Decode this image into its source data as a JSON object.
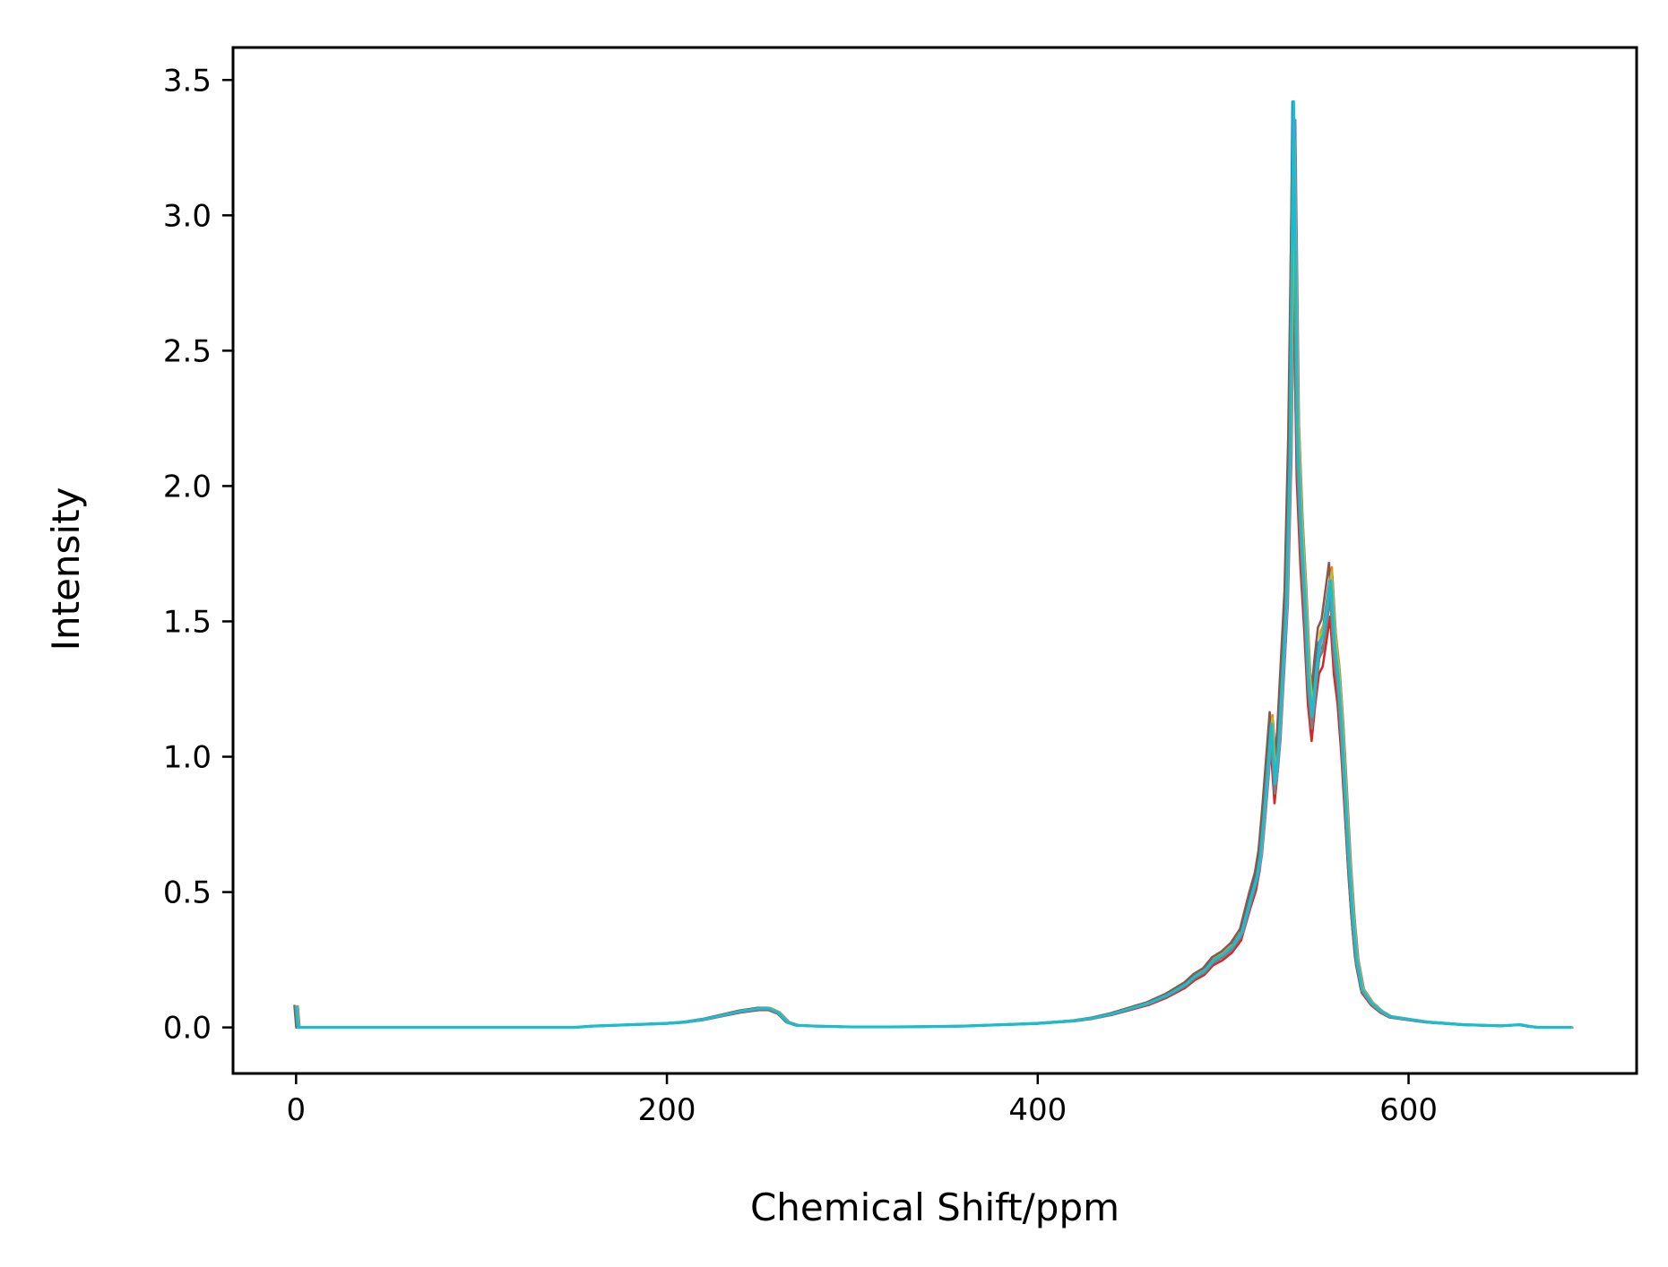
{
  "chart_data": {
    "type": "line",
    "title": "",
    "xlabel": "Chemical Shift/ppm",
    "ylabel": "Intensity",
    "xlim": [
      -34,
      723
    ],
    "ylim": [
      -0.17,
      3.62
    ],
    "grid": false,
    "legend": "none",
    "xticks": [
      0,
      200,
      400,
      600
    ],
    "xtick_labels": [
      "0",
      "200",
      "400",
      "600"
    ],
    "yticks": [
      0.0,
      0.5,
      1.0,
      1.5,
      2.0,
      2.5,
      3.0,
      3.5
    ],
    "ytick_labels": [
      "0.0",
      "0.5",
      "1.0",
      "1.5",
      "2.0",
      "2.5",
      "3.0",
      "3.5"
    ],
    "colors": [
      "#1f77b4",
      "#ff7f0e",
      "#2ca02c",
      "#d62728",
      "#9467bd",
      "#8c564b",
      "#e377c2",
      "#7f7f7f",
      "#bcbd22",
      "#17becf"
    ],
    "base_spectrum": {
      "x": [
        0,
        1,
        2,
        3,
        100,
        110,
        120,
        130,
        140,
        150,
        160,
        180,
        200,
        210,
        220,
        230,
        240,
        250,
        255,
        260,
        265,
        270,
        280,
        300,
        320,
        340,
        360,
        380,
        400,
        410,
        420,
        430,
        440,
        450,
        460,
        470,
        480,
        485,
        490,
        495,
        500,
        505,
        510,
        515,
        518,
        520,
        522,
        524,
        526,
        528,
        530,
        532,
        534,
        536,
        538,
        540,
        542,
        544,
        546,
        548,
        550,
        552,
        554,
        556,
        558,
        560,
        562,
        564,
        566,
        568,
        570,
        572,
        575,
        580,
        585,
        590,
        600,
        610,
        620,
        630,
        640,
        650,
        660,
        665,
        670,
        675,
        680,
        684,
        688
      ],
      "y": [
        0.08,
        0.0,
        0.0,
        0.0,
        0.0,
        0.0,
        0.0,
        0.0,
        0.0,
        0.0,
        0.005,
        0.01,
        0.015,
        0.02,
        0.03,
        0.045,
        0.06,
        0.07,
        0.07,
        0.055,
        0.02,
        0.008,
        0.005,
        0.002,
        0.002,
        0.003,
        0.005,
        0.01,
        0.015,
        0.02,
        0.025,
        0.035,
        0.05,
        0.07,
        0.09,
        0.12,
        0.16,
        0.19,
        0.21,
        0.25,
        0.27,
        0.3,
        0.35,
        0.48,
        0.55,
        0.63,
        0.78,
        0.95,
        1.12,
        0.9,
        1.05,
        1.3,
        1.55,
        2.1,
        3.42,
        2.2,
        1.85,
        1.6,
        1.3,
        1.15,
        1.3,
        1.42,
        1.45,
        1.55,
        1.65,
        1.42,
        1.3,
        1.1,
        0.85,
        0.6,
        0.4,
        0.25,
        0.14,
        0.09,
        0.06,
        0.04,
        0.03,
        0.02,
        0.015,
        0.01,
        0.008,
        0.006,
        0.01,
        0.004,
        0.0,
        0.0,
        0.0,
        0.0,
        0.0
      ]
    },
    "series_scales": [
      1.0,
      1.03,
      0.98,
      0.92,
      1.01,
      1.04,
      0.99,
      0.96,
      1.02,
      1.0
    ],
    "series_shifts": [
      -0.6,
      0.6,
      0.3,
      -0.3,
      0.9,
      -0.9,
      0.2,
      -0.2,
      0.5,
      0.0
    ]
  }
}
